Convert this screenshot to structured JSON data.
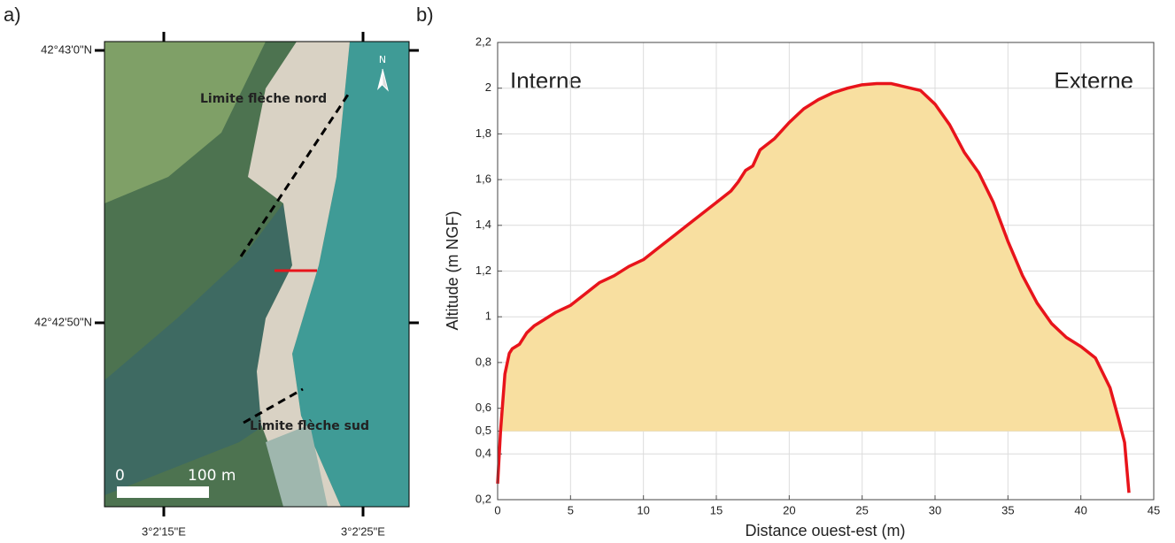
{
  "panel_labels": [
    "a)",
    "b)"
  ],
  "map": {
    "lat_labels": [
      "42°43'0\"N",
      "42°42'50\"N"
    ],
    "lon_labels": [
      "3°2'15\"E",
      "3°2'25\"E"
    ],
    "annotations": [
      "Limite flèche nord",
      "Limite flèche sud"
    ],
    "north": "N",
    "scale_labels": [
      "0",
      "100 m"
    ]
  },
  "chart_data": {
    "type": "line",
    "xlabel": "Distance ouest-est (m)",
    "ylabel": "Altitude (m NGF)",
    "annotations": [
      "Interne",
      "Externe"
    ],
    "x": [
      0,
      0.2,
      0.5,
      0.8,
      1,
      1.5,
      2,
      2.5,
      3,
      4,
      5,
      6,
      7,
      8,
      9,
      10,
      11,
      12,
      13,
      14,
      15,
      16,
      16.5,
      17,
      17.5,
      18,
      19,
      20,
      21,
      22,
      23,
      24,
      25,
      26,
      27,
      28,
      29,
      30,
      31,
      32,
      33,
      34,
      35,
      36,
      37,
      38,
      39,
      40,
      41,
      42,
      42.6,
      43,
      43.3
    ],
    "values": [
      0.27,
      0.5,
      0.75,
      0.84,
      0.86,
      0.88,
      0.93,
      0.96,
      0.98,
      1.02,
      1.05,
      1.1,
      1.15,
      1.18,
      1.22,
      1.25,
      1.3,
      1.35,
      1.4,
      1.45,
      1.5,
      1.55,
      1.59,
      1.64,
      1.66,
      1.73,
      1.78,
      1.85,
      1.91,
      1.95,
      1.98,
      2.0,
      2.015,
      2.02,
      2.02,
      2.005,
      1.99,
      1.93,
      1.84,
      1.72,
      1.63,
      1.5,
      1.33,
      1.18,
      1.06,
      0.97,
      0.91,
      0.87,
      0.82,
      0.69,
      0.55,
      0.45,
      0.23
    ],
    "color": "#e8141b",
    "fill_color": "#f8dfa0",
    "fill_baseline": 0.5,
    "xlim": [
      0,
      45
    ],
    "xticks": [
      0,
      5,
      10,
      15,
      20,
      25,
      30,
      35,
      40,
      45
    ],
    "ylim": [
      0.2,
      2.2
    ],
    "yticks": [
      {
        "value": 0.2,
        "label": "0,2"
      },
      {
        "value": 0.4,
        "label": "0,4"
      },
      {
        "value": 0.5,
        "label": "0,5"
      },
      {
        "value": 0.6,
        "label": "0,6"
      },
      {
        "value": 0.8,
        "label": "0,8"
      },
      1,
      {
        "value": 1.2,
        "label": "1,2"
      },
      {
        "value": 1.4,
        "label": "1,4"
      },
      {
        "value": 1.6,
        "label": "1,6"
      },
      {
        "value": 1.8,
        "label": "1,8"
      },
      2,
      {
        "value": 2.2,
        "label": "2,2"
      }
    ],
    "grid": true
  }
}
